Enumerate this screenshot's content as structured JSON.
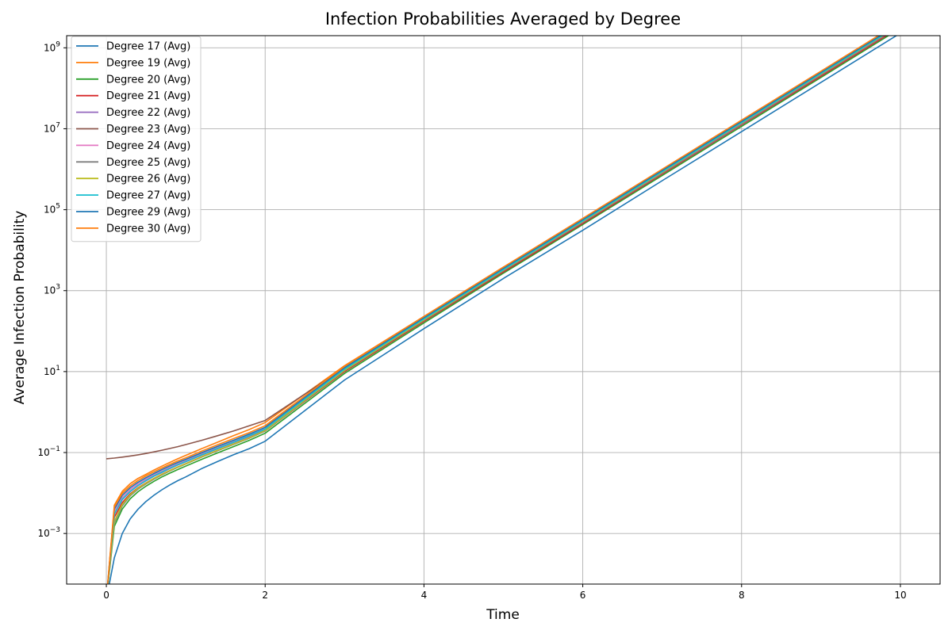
{
  "chart_data": {
    "type": "line",
    "title": "Infection Probabilities Averaged by Degree",
    "xlabel": "Time",
    "ylabel": "Average Infection Probability",
    "xlim": [
      -0.5,
      10.5
    ],
    "ylim_log10": [
      -4.25,
      9.3
    ],
    "y_scale": "log",
    "grid": true,
    "legend_position": "upper-left",
    "x_ticks": [
      0,
      2,
      4,
      6,
      8,
      10
    ],
    "x_tick_labels": [
      "0",
      "2",
      "4",
      "6",
      "8",
      "10"
    ],
    "y_ticks_log10": [
      -3,
      -1,
      1,
      3,
      5,
      7,
      9
    ],
    "y_tick_labels": [
      {
        "base": "10",
        "exp": "−3"
      },
      {
        "base": "10",
        "exp": "−1"
      },
      {
        "base": "10",
        "exp": "1"
      },
      {
        "base": "10",
        "exp": "3"
      },
      {
        "base": "10",
        "exp": "5"
      },
      {
        "base": "10",
        "exp": "7"
      },
      {
        "base": "10",
        "exp": "9"
      }
    ],
    "x": [
      0,
      0.1,
      0.2,
      0.3,
      0.4,
      0.5,
      0.6,
      0.7,
      0.8,
      0.9,
      1.0,
      1.2,
      1.4,
      1.6,
      1.8,
      2.0,
      3,
      4,
      5,
      6,
      7,
      8,
      9,
      10
    ],
    "series": [
      {
        "name": "Degree 17 (Avg)",
        "color": "#1f77b4",
        "values": [
          0,
          0.00025,
          0.001,
          0.0023,
          0.004,
          0.0062,
          0.0088,
          0.012,
          0.0158,
          0.0202,
          0.025,
          0.04,
          0.06,
          0.088,
          0.125,
          0.19,
          6.2,
          115,
          2000,
          31000,
          520000,
          8500000,
          140000000,
          2300000000
        ]
      },
      {
        "name": "Degree 19 (Avg)",
        "color": "#ff7f0e",
        "values": [
          0,
          0.005,
          0.011,
          0.017,
          0.023,
          0.029,
          0.037,
          0.046,
          0.057,
          0.07,
          0.085,
          0.125,
          0.18,
          0.26,
          0.37,
          0.55,
          14,
          230,
          3800,
          60000,
          980000,
          16000000,
          260000000,
          4300000000
        ]
      },
      {
        "name": "Degree 20 (Avg)",
        "color": "#2ca02c",
        "values": [
          0,
          0.0015,
          0.004,
          0.0072,
          0.0108,
          0.0148,
          0.0195,
          0.025,
          0.031,
          0.038,
          0.046,
          0.068,
          0.098,
          0.14,
          0.2,
          0.3,
          9,
          160,
          2700,
          43000,
          700000,
          11500000,
          185000000,
          3050000000
        ]
      },
      {
        "name": "Degree 21 (Avg)",
        "color": "#d62728",
        "values": [
          0,
          0.0025,
          0.0058,
          0.0095,
          0.0135,
          0.0178,
          0.023,
          0.029,
          0.036,
          0.044,
          0.053,
          0.078,
          0.112,
          0.16,
          0.23,
          0.34,
          10,
          175,
          2900,
          46000,
          760000,
          12500000,
          200000000,
          3300000000
        ]
      },
      {
        "name": "Degree 22 (Avg)",
        "color": "#9467bd",
        "values": [
          0,
          0.003,
          0.0068,
          0.0108,
          0.0152,
          0.02,
          0.026,
          0.032,
          0.04,
          0.049,
          0.059,
          0.086,
          0.124,
          0.176,
          0.25,
          0.37,
          11,
          185,
          3100,
          49000,
          800000,
          13000000,
          215000000,
          3500000000
        ]
      },
      {
        "name": "Degree 23 (Avg)",
        "color": "#8c564b",
        "values": [
          0.07,
          0.073,
          0.077,
          0.082,
          0.088,
          0.095,
          0.104,
          0.114,
          0.126,
          0.14,
          0.157,
          0.2,
          0.26,
          0.34,
          0.46,
          0.62,
          12.5,
          200,
          3300,
          52000,
          850000,
          14000000,
          225000000,
          3700000000
        ]
      },
      {
        "name": "Degree 24 (Avg)",
        "color": "#e377c2",
        "values": [
          0,
          0.0035,
          0.0078,
          0.0122,
          0.017,
          0.0222,
          0.0285,
          0.035,
          0.0435,
          0.053,
          0.064,
          0.093,
          0.134,
          0.19,
          0.27,
          0.4,
          11.8,
          200,
          3300,
          52000,
          860000,
          14000000,
          230000000,
          3750000000
        ]
      },
      {
        "name": "Degree 25 (Avg)",
        "color": "#7f7f7f",
        "values": [
          0,
          0.0018,
          0.0048,
          0.0085,
          0.0125,
          0.0168,
          0.022,
          0.028,
          0.035,
          0.043,
          0.052,
          0.077,
          0.111,
          0.158,
          0.225,
          0.34,
          10.5,
          185,
          3100,
          50000,
          820000,
          13500000,
          220000000,
          3600000000
        ]
      },
      {
        "name": "Degree 26 (Avg)",
        "color": "#bcbd22",
        "values": [
          0,
          0.002,
          0.0052,
          0.009,
          0.0132,
          0.0176,
          0.023,
          0.029,
          0.036,
          0.044,
          0.053,
          0.079,
          0.114,
          0.162,
          0.23,
          0.35,
          10.8,
          190,
          3200,
          51000,
          840000,
          13800000,
          225000000,
          3700000000
        ]
      },
      {
        "name": "Degree 27 (Avg)",
        "color": "#17becf",
        "values": [
          0,
          0.003,
          0.007,
          0.011,
          0.0155,
          0.0205,
          0.0265,
          0.033,
          0.041,
          0.05,
          0.06,
          0.088,
          0.127,
          0.18,
          0.26,
          0.38,
          11.5,
          200,
          3300,
          53000,
          870000,
          14200000,
          232000000,
          3800000000
        ]
      },
      {
        "name": "Degree 29 (Avg)",
        "color": "#1f77b4",
        "values": [
          0,
          0.004,
          0.0088,
          0.0135,
          0.0185,
          0.024,
          0.0305,
          0.038,
          0.047,
          0.057,
          0.068,
          0.099,
          0.142,
          0.2,
          0.285,
          0.42,
          12.5,
          215,
          3550,
          57000,
          930000,
          15200000,
          248000000,
          4050000000
        ]
      },
      {
        "name": "Degree 30 (Avg)",
        "color": "#ff7f0e",
        "values": [
          0,
          0.0045,
          0.0098,
          0.015,
          0.0205,
          0.0265,
          0.0335,
          0.0415,
          0.051,
          0.062,
          0.074,
          0.108,
          0.155,
          0.22,
          0.31,
          0.46,
          13.5,
          230,
          3800,
          61000,
          1000000,
          16300000,
          265000000,
          4350000000
        ]
      }
    ]
  }
}
